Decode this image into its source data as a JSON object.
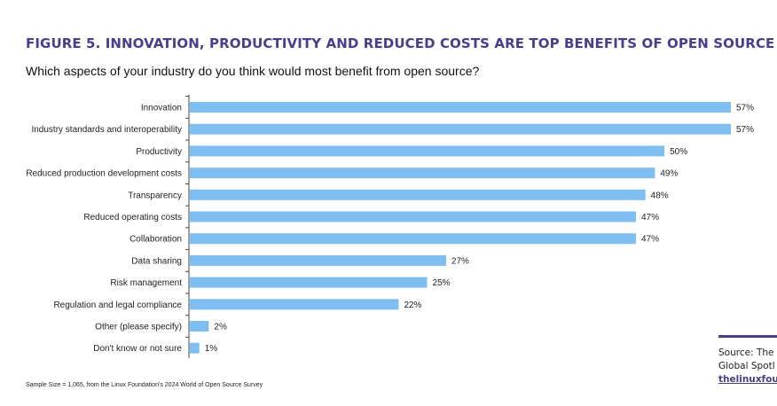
{
  "figure": {
    "title": "FIGURE 5. INNOVATION, PRODUCTIVITY AND REDUCED COSTS ARE TOP BENEFITS OF OPEN SOURCE",
    "subtitle": "Which aspects of your industry do you think would most benefit from open source?",
    "footnote": "Sample Size = 1,065, from the Linux Foundation's 2024 World of Open Source Survey"
  },
  "source": {
    "line1": "Source: The",
    "line2": "Global Spotl",
    "link": "thelinuxfour"
  },
  "colors": {
    "title": "#4b3c8c",
    "bar": "#7fbef0",
    "accent_rule": "#4b3c8c"
  },
  "chart_data": {
    "type": "bar",
    "orientation": "horizontal",
    "title": "Which aspects of your industry do you think would most benefit from open source?",
    "xlabel": "",
    "ylabel": "",
    "xlim": [
      0,
      60
    ],
    "grid": false,
    "value_suffix": "%",
    "categories": [
      "Innovation",
      "Industry standards and interoperability",
      "Productivity",
      "Reduced production development costs",
      "Transparency",
      "Reduced operating costs",
      "Collaboration",
      "Data sharing",
      "Risk management",
      "Regulation and legal compliance",
      "Other (please specify)",
      "Don't know or not sure"
    ],
    "values": [
      57,
      57,
      50,
      49,
      48,
      47,
      47,
      27,
      25,
      22,
      2,
      1
    ]
  }
}
